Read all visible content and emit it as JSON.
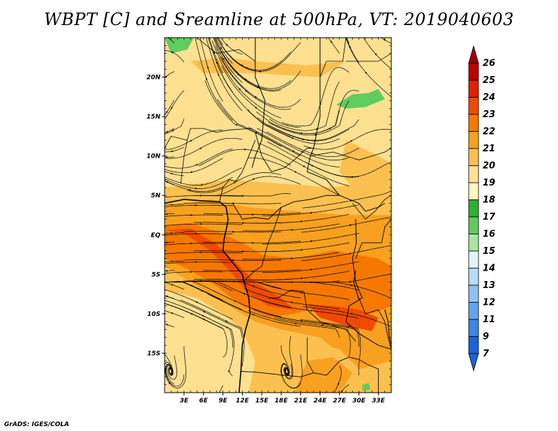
{
  "title": "WBPT [C] and Sreamline at 500hPa, VT: 2019040603",
  "credit": "GrADS: IGES/COLA",
  "map": {
    "lon_min": 0,
    "lon_max": 35,
    "lat_min": -20,
    "lat_max": 25,
    "lat_ticks": [
      {
        "lat": 20,
        "label": "20N"
      },
      {
        "lat": 15,
        "label": "15N"
      },
      {
        "lat": 10,
        "label": "10N"
      },
      {
        "lat": 5,
        "label": "5N"
      },
      {
        "lat": 0,
        "label": "EQ"
      },
      {
        "lat": -5,
        "label": "5S"
      },
      {
        "lat": -10,
        "label": "10S"
      },
      {
        "lat": -15,
        "label": "15S"
      }
    ],
    "lon_ticks": [
      {
        "lon": 3,
        "label": "3E"
      },
      {
        "lon": 6,
        "label": "6E"
      },
      {
        "lon": 9,
        "label": "9E"
      },
      {
        "lon": 12,
        "label": "12E"
      },
      {
        "lon": 15,
        "label": "15E"
      },
      {
        "lon": 18,
        "label": "18E"
      },
      {
        "lon": 21,
        "label": "21E"
      },
      {
        "lon": 24,
        "label": "24E"
      },
      {
        "lon": 27,
        "label": "27E"
      },
      {
        "lon": 30,
        "label": "30E"
      },
      {
        "lon": 33,
        "label": "33E"
      }
    ]
  },
  "colorbar": {
    "labels": [
      "26",
      "25",
      "24",
      "23",
      "22",
      "21",
      "20",
      "19",
      "18",
      "17",
      "16",
      "15",
      "14",
      "13",
      "12",
      "11",
      "9",
      "7"
    ],
    "colors": [
      "#a00000",
      "#c00000",
      "#e02000",
      "#f04a00",
      "#f67800",
      "#f8a020",
      "#fbc050",
      "#fde090",
      "#fff5c0",
      "#30b030",
      "#60cc60",
      "#a8e6a0",
      "#e0f6f6",
      "#b8daf8",
      "#90c0f2",
      "#60a4ee",
      "#3c86e4",
      "#1a64d8",
      "#1a64d8"
    ]
  },
  "fill_colors": {
    "yellow": "#fde090",
    "light_orange": "#fbc050",
    "orange": "#f8a020",
    "dark_orange": "#f67800",
    "red_orange": "#f04a00",
    "green": "#30b030",
    "light_green": "#60cc60"
  }
}
